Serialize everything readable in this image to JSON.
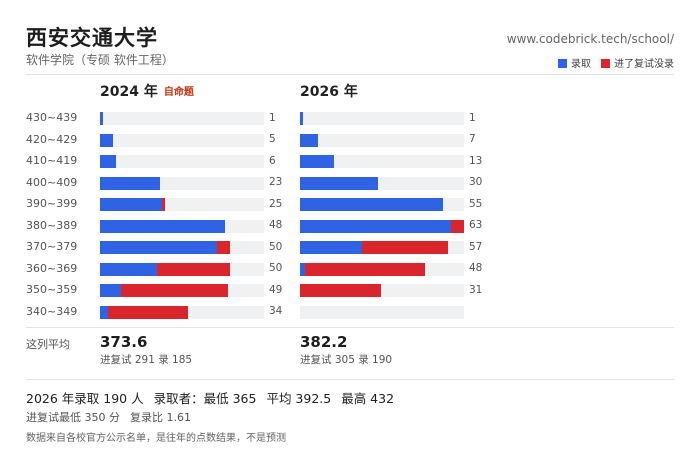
{
  "header": {
    "title": "西安交通大学",
    "subtitle": "软件学院（专硕 软件工程）",
    "url": "www.codebrick.tech/school/"
  },
  "legend": {
    "admitted": "录取",
    "not_admitted": "进了复试没录"
  },
  "colors": {
    "admitted": "#2f63e3",
    "not_admitted": "#d9262c",
    "track": "#f0f1f3"
  },
  "chart_data": [
    {
      "type": "bar",
      "title": "2024 年",
      "tag": "自命题",
      "categories": [
        "430~439",
        "420~429",
        "410~419",
        "400~409",
        "390~399",
        "380~389",
        "370~379",
        "360~369",
        "350~359",
        "340~349"
      ],
      "series": [
        {
          "name": "录取",
          "values": [
            1,
            5,
            6,
            23,
            24,
            48,
            45,
            22,
            8,
            3
          ]
        },
        {
          "name": "进了复试没录",
          "values": [
            0,
            0,
            0,
            0,
            1,
            0,
            5,
            28,
            41,
            31
          ]
        }
      ],
      "totals": [
        1,
        5,
        6,
        23,
        25,
        48,
        50,
        50,
        49,
        34
      ],
      "xlim": [
        0,
        63
      ],
      "average": "373.6",
      "average_sub": "进复试 291 录 185"
    },
    {
      "type": "bar",
      "title": "2026 年",
      "categories": [
        "430~439",
        "420~429",
        "410~419",
        "400~409",
        "390~399",
        "380~389",
        "370~379",
        "360~369",
        "350~359",
        "340~349"
      ],
      "series": [
        {
          "name": "录取",
          "values": [
            1,
            7,
            13,
            30,
            55,
            58,
            24,
            2,
            0,
            0
          ]
        },
        {
          "name": "进了复试没录",
          "values": [
            0,
            0,
            0,
            0,
            0,
            5,
            33,
            46,
            31,
            0
          ]
        }
      ],
      "totals": [
        "1",
        "7",
        "13",
        "30",
        "55",
        "63",
        "57",
        "48",
        "31",
        ""
      ],
      "xlim": [
        0,
        63
      ],
      "average": "382.2",
      "average_sub": "进复试 305 录 190"
    }
  ],
  "avg_label": "这列平均",
  "summary": {
    "line1": [
      "2026 年录取 190 人",
      "录取者：最低 365",
      "平均 392.5",
      "最高 432"
    ],
    "line2": [
      "进复试最低 350 分",
      "复录比 1.61"
    ],
    "note": "数据来自各校官方公示名单，是往年的点数结果，不是预测"
  }
}
